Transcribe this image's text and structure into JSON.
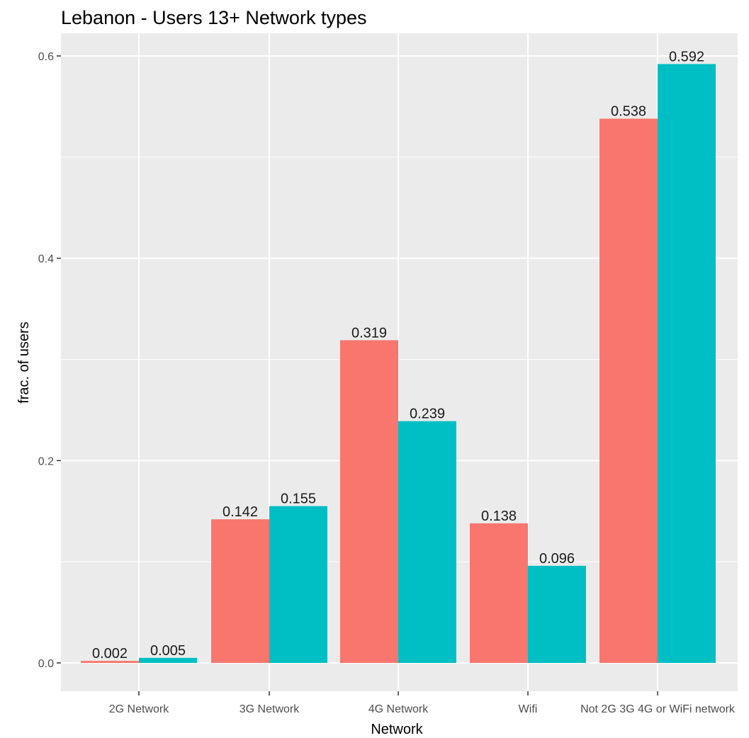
{
  "chart_data": {
    "type": "bar",
    "title": "Lebanon - Users 13+ Network types",
    "xlabel": "Network",
    "ylabel": "frac. of users",
    "categories": [
      "2G Network",
      "3G Network",
      "4G Network",
      "Wifi",
      "Not 2G 3G 4G or WiFi network"
    ],
    "series": [
      {
        "values": [
          0.002,
          0.142,
          0.319,
          0.138,
          0.538
        ],
        "color": "#F8766D"
      },
      {
        "values": [
          0.005,
          0.155,
          0.239,
          0.096,
          0.592
        ],
        "color": "#00BFC4"
      }
    ],
    "ylim": [
      0,
      0.62
    ],
    "yticks": [
      0.0,
      0.2,
      0.4,
      0.6
    ],
    "ytick_labels": [
      "0.0",
      "0.2",
      "0.4",
      "0.6"
    ],
    "data_labels": [
      [
        "0.002",
        "0.142",
        "0.319",
        "0.138",
        "0.538"
      ],
      [
        "0.005",
        "0.155",
        "0.239",
        "0.096",
        "0.592"
      ]
    ],
    "grid": true,
    "legend": "none",
    "panel_background": "#EBEBEB",
    "grid_color": "#FFFFFF"
  }
}
